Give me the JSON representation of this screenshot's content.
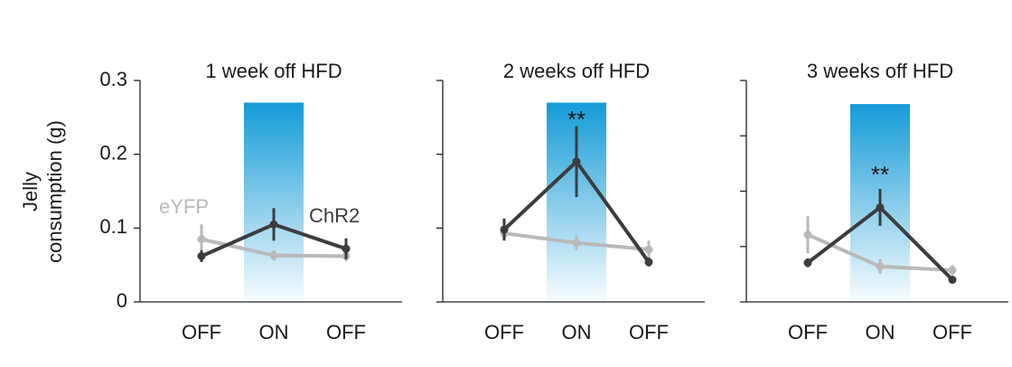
{
  "chart_data": [
    {
      "type": "line",
      "title": "1 week off HFD",
      "ylabel": [
        "Jelly",
        "consumption (g)"
      ],
      "categories": [
        "OFF",
        "ON",
        "OFF"
      ],
      "ylim": [
        0,
        0.3
      ],
      "yticks": [
        0,
        0.1,
        0.2,
        0.3
      ],
      "ytick_labels": true,
      "highlight": {
        "category": 1,
        "top": 0.27
      },
      "series": [
        {
          "name": "eYFP",
          "color": "#b9b9b9",
          "values": [
            0.085,
            0.063,
            0.062
          ],
          "errors": [
            0.02,
            0.007,
            0.007
          ]
        },
        {
          "name": "ChR2",
          "color": "#3c3c3f",
          "values": [
            0.062,
            0.105,
            0.072
          ],
          "errors": [
            0.008,
            0.022,
            0.014
          ]
        }
      ]
    },
    {
      "type": "line",
      "title": "2 weeks off HFD",
      "categories": [
        "OFF",
        "ON",
        "OFF"
      ],
      "ylim": [
        0,
        0.3
      ],
      "yticks": [
        0,
        0.1,
        0.2,
        0.3
      ],
      "ytick_labels": false,
      "highlight": {
        "category": 1,
        "top": 0.27
      },
      "annotations": [
        {
          "text": "**",
          "category": 1,
          "y": 0.245
        }
      ],
      "series": [
        {
          "color": "#b9b9b9",
          "values": [
            0.093,
            0.08,
            0.071
          ],
          "errors": [
            0.006,
            0.01,
            0.012
          ]
        },
        {
          "color": "#3c3c3f",
          "values": [
            0.098,
            0.19,
            0.054
          ],
          "errors": [
            0.015,
            0.048,
            0.006
          ]
        }
      ]
    },
    {
      "type": "line",
      "title": "3 weeks off HFD",
      "categories": [
        "OFF",
        "ON",
        "OFF"
      ],
      "ylim": [
        0,
        0.3
      ],
      "yticks": [
        0,
        0.075,
        0.15,
        0.225,
        0.3
      ],
      "ytick_labels": false,
      "highlight": {
        "category": 1,
        "top": 0.268
      },
      "annotations": [
        {
          "text": "**",
          "category": 1,
          "y": 0.17
        }
      ],
      "series": [
        {
          "color": "#b9b9b9",
          "values": [
            0.091,
            0.048,
            0.043
          ],
          "errors": [
            0.025,
            0.01,
            0.007
          ]
        },
        {
          "color": "#3c3c3f",
          "values": [
            0.053,
            0.128,
            0.03
          ],
          "errors": [
            0.006,
            0.025,
            0.004
          ]
        }
      ]
    }
  ]
}
